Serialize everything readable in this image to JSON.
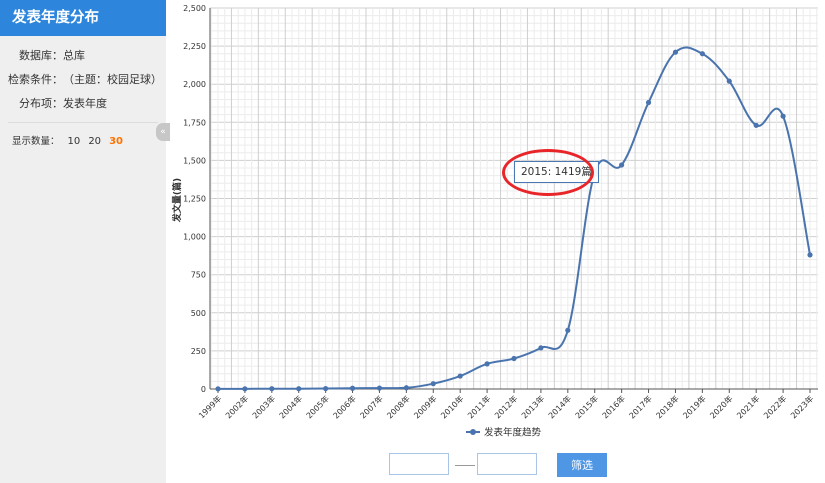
{
  "sidebar": {
    "title": "发表年度分布",
    "database_label": "数据库：",
    "database_value": "总库",
    "criteria_label": "检索条件：",
    "criteria_value": "（主题：校园足球）",
    "distribution_label": "分布项：",
    "distribution_value": "发表年度",
    "count_label": "显示数量：",
    "count_options": [
      "10",
      "20",
      "30"
    ],
    "count_selected": "30",
    "collapse_icon": "double-chevron-left-icon"
  },
  "tooltip": {
    "text": "2015: 1419篇"
  },
  "filter": {
    "start_value": "",
    "end_value": "",
    "button_label": "筛选"
  },
  "colors": {
    "accent": "#2d86dc",
    "series": "#4a74ad",
    "highlight": "#e8262a",
    "count_active": "#ff7200"
  },
  "chart_data": {
    "type": "line",
    "ylabel": "发文量(篇)",
    "ylim": [
      0,
      2500
    ],
    "yticks": [
      "0",
      "250",
      "500",
      "750",
      "1,000",
      "1,250",
      "1,500",
      "1,750",
      "2,000",
      "2,250",
      "2,500"
    ],
    "categories": [
      "1999年",
      "2002年",
      "2003年",
      "2004年",
      "2005年",
      "2006年",
      "2007年",
      "2008年",
      "2009年",
      "2010年",
      "2011年",
      "2012年",
      "2013年",
      "2014年",
      "2015年",
      "2016年",
      "2017年",
      "2018年",
      "2019年",
      "2020年",
      "2021年",
      "2022年",
      "2023年"
    ],
    "series": [
      {
        "name": "发表年度趋势",
        "values": [
          1,
          1,
          2,
          2,
          3,
          5,
          6,
          8,
          35,
          85,
          165,
          200,
          270,
          385,
          1419,
          1470,
          1880,
          2210,
          2200,
          2020,
          1730,
          1790,
          880
        ]
      }
    ],
    "grid": true,
    "legend": "bottom"
  }
}
